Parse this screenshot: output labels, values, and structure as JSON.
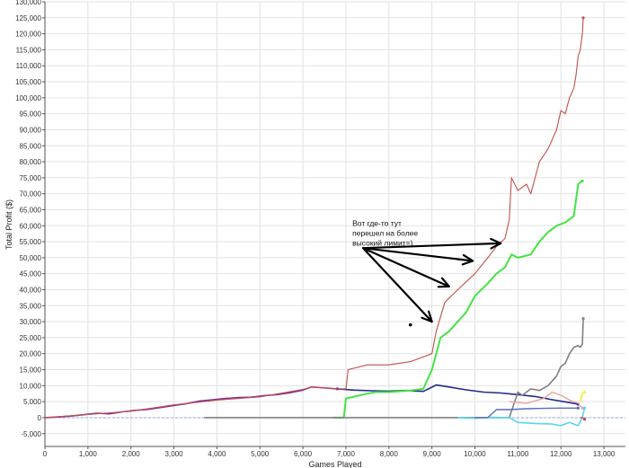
{
  "chart_data": {
    "type": "line",
    "xlabel": "Games Played",
    "ylabel": "Total Profit ($)",
    "xlim": [
      0,
      13500
    ],
    "ylim": [
      -9000,
      130000
    ],
    "xticks": [
      0,
      1000,
      2000,
      3000,
      4000,
      5000,
      6000,
      7000,
      8000,
      9000,
      10000,
      11000,
      12000,
      13000
    ],
    "xtick_labels": [
      "0",
      "1,000",
      "2,000",
      "3,000",
      "4,000",
      "5,000",
      "6,000",
      "7,000",
      "8,000",
      "9,000",
      "10,000",
      "11,000",
      "12,000",
      "13,000"
    ],
    "yticks": [
      -5000,
      0,
      5000,
      10000,
      15000,
      20000,
      25000,
      30000,
      35000,
      40000,
      45000,
      50000,
      55000,
      60000,
      65000,
      70000,
      75000,
      80000,
      85000,
      90000,
      95000,
      100000,
      105000,
      110000,
      115000,
      120000,
      125000,
      130000
    ],
    "ytick_labels": [
      "-5,000",
      "0",
      "5,000",
      "10,000",
      "15,000",
      "20,000",
      "25,000",
      "30,000",
      "35,000",
      "40,000",
      "45,000",
      "50,000",
      "55,000",
      "60,000",
      "65,000",
      "70,000",
      "75,000",
      "80,000",
      "85,000",
      "90,000",
      "95,000",
      "100,000",
      "105,000",
      "110,000",
      "115,000",
      "120,000",
      "125,000",
      "130,000"
    ],
    "grid": true,
    "zero_line": true,
    "series": [
      {
        "color": "#7b2fa0",
        "width": 1.6,
        "x": [
          0,
          300,
          600,
          900,
          1200,
          1500,
          1800,
          2100,
          2400,
          2700,
          3000,
          3300,
          3600,
          3900,
          4200,
          4500,
          4800,
          5100,
          5400,
          5700,
          6000,
          6200,
          6400,
          6600,
          6800
        ],
        "y": [
          0,
          200,
          500,
          900,
          1400,
          1200,
          1800,
          2300,
          2600,
          3200,
          3800,
          4400,
          5200,
          5600,
          6000,
          6300,
          6400,
          6900,
          7200,
          7800,
          8600,
          9600,
          9400,
          9200,
          9000
        ]
      },
      {
        "color": "#1f2a8a",
        "width": 1.6,
        "x": [
          6800,
          7200,
          7600,
          8000,
          8400,
          8800,
          9100,
          9400,
          9800,
          10200,
          10600,
          11000,
          11400,
          11800,
          12200,
          12400
        ],
        "y": [
          9000,
          8600,
          8400,
          8300,
          8500,
          8200,
          10200,
          9600,
          8700,
          8000,
          7700,
          7200,
          6600,
          5600,
          4700,
          4200
        ]
      },
      {
        "color": "#c0504d",
        "width": 1.1,
        "x": [
          0,
          1000,
          2000,
          3000,
          4000,
          5000,
          6000,
          6200,
          6800,
          7000,
          7050,
          7500,
          8000,
          8500,
          9000,
          9100,
          9300,
          9600,
          10000,
          10300,
          10500,
          10700,
          10800,
          10850,
          11000,
          11200,
          11300,
          11500,
          11700,
          11900,
          12000,
          12100,
          12200,
          12300,
          12350,
          12400,
          12450,
          12500,
          12520
        ],
        "y": [
          0,
          1000,
          2000,
          4000,
          5500,
          6500,
          8800,
          9600,
          9000,
          9000,
          15000,
          16500,
          16500,
          17500,
          20000,
          27000,
          36000,
          40000,
          45000,
          50000,
          53500,
          56000,
          62000,
          75000,
          71000,
          73000,
          70000,
          80000,
          84000,
          90000,
          96000,
          95000,
          100000,
          103000,
          107000,
          113000,
          115000,
          120000,
          125000
        ]
      },
      {
        "color": "#44e444",
        "width": 2.0,
        "x": [
          6700,
          6950,
          7000,
          7500,
          7700,
          8000,
          8500,
          8800,
          9000,
          9100,
          9200,
          9400,
          9600,
          9800,
          10000,
          10300,
          10500,
          10700,
          10850,
          11000,
          11300,
          11500,
          11700,
          11900,
          12100,
          12300,
          12400,
          12500
        ],
        "y": [
          0,
          0,
          6000,
          7500,
          8000,
          8000,
          8500,
          9000,
          15000,
          20000,
          25000,
          27000,
          30000,
          33000,
          38000,
          42000,
          45000,
          47000,
          51000,
          50000,
          51000,
          55000,
          58000,
          60000,
          61000,
          63000,
          73000,
          74000
        ]
      },
      {
        "color": "#808080",
        "width": 1.6,
        "x": [
          3700,
          5000,
          6500,
          8000,
          9500,
          10800,
          11000,
          11100,
          11300,
          11500,
          11700,
          11900,
          12000,
          12100,
          12200,
          12300,
          12400,
          12450,
          12500,
          12520
        ],
        "y": [
          0,
          0,
          0,
          0,
          0,
          0,
          8000,
          7000,
          9000,
          8500,
          10000,
          13000,
          16000,
          17000,
          20000,
          22000,
          22500,
          22000,
          23000,
          31000
        ]
      },
      {
        "color": "#e8a39e",
        "width": 1.4,
        "x": [
          10800,
          11200,
          11600,
          11800,
          12000,
          12200,
          12400,
          12500
        ],
        "y": [
          5000,
          4500,
          6000,
          8000,
          7000,
          5500,
          4500,
          3000
        ]
      },
      {
        "color": "#5ad6ec",
        "width": 1.6,
        "x": [
          9600,
          10000,
          10400,
          10800,
          11000,
          11400,
          11800,
          12000,
          12200,
          12400,
          12500,
          12550
        ],
        "y": [
          0,
          -200,
          100,
          0,
          -1500,
          -1800,
          -2000,
          -2500,
          -1500,
          -2500,
          0,
          3000
        ]
      },
      {
        "color": "#5b6cbf",
        "width": 1.4,
        "x": [
          10000,
          10300,
          10500,
          10800,
          11200,
          11600,
          12000,
          12400
        ],
        "y": [
          0,
          0,
          2500,
          2500,
          2800,
          2900,
          3000,
          3000
        ]
      },
      {
        "color": "#f2f24a",
        "width": 2.0,
        "x": [
          12450,
          12500,
          12550
        ],
        "y": [
          5000,
          7500,
          8000
        ]
      },
      {
        "color": "#c0504d",
        "width": 1.4,
        "x": [
          12450,
          12500,
          12550
        ],
        "y": [
          0,
          0,
          -500
        ]
      }
    ],
    "annotations": [
      {
        "text": [
          "Вот где-то тут",
          "перешел на более",
          "высокий лимит=)"
        ],
        "anchor": [
          7150,
          60000
        ],
        "arrow_origin": [
          7400,
          53000
        ],
        "arrow_targets": [
          [
            10600,
            54500
          ],
          [
            9950,
            49000
          ],
          [
            9400,
            41000
          ],
          [
            9000,
            30000
          ]
        ]
      }
    ],
    "markers": [
      [
        8500,
        29000
      ]
    ]
  }
}
